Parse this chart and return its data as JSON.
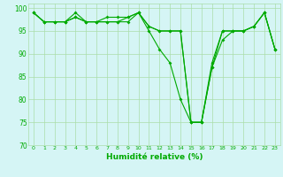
{
  "x": [
    0,
    1,
    2,
    3,
    4,
    5,
    6,
    7,
    8,
    9,
    10,
    11,
    12,
    13,
    14,
    15,
    16,
    17,
    18,
    19,
    20,
    21,
    22,
    23
  ],
  "line1": [
    99,
    97,
    97,
    97,
    98,
    97,
    97,
    97,
    97,
    98,
    99,
    95,
    91,
    88,
    80,
    75,
    75,
    87,
    93,
    95,
    95,
    96,
    99,
    91
  ],
  "line2": [
    99,
    97,
    97,
    97,
    99,
    97,
    97,
    98,
    98,
    98,
    99,
    96,
    95,
    95,
    95,
    75,
    75,
    88,
    95,
    95,
    95,
    96,
    99,
    91
  ],
  "line3": [
    99,
    97,
    97,
    97,
    98,
    97,
    97,
    97,
    97,
    97,
    99,
    96,
    95,
    95,
    95,
    75,
    75,
    87,
    95,
    95,
    95,
    96,
    99,
    91
  ],
  "line_color": "#00aa00",
  "bg_color": "#d5f5f5",
  "grid_color": "#aaddaa",
  "xlabel": "Humidité relative (%)",
  "ylim": [
    70,
    101
  ],
  "yticks": [
    70,
    75,
    80,
    85,
    90,
    95,
    100
  ],
  "xlim": [
    -0.5,
    23.5
  ]
}
